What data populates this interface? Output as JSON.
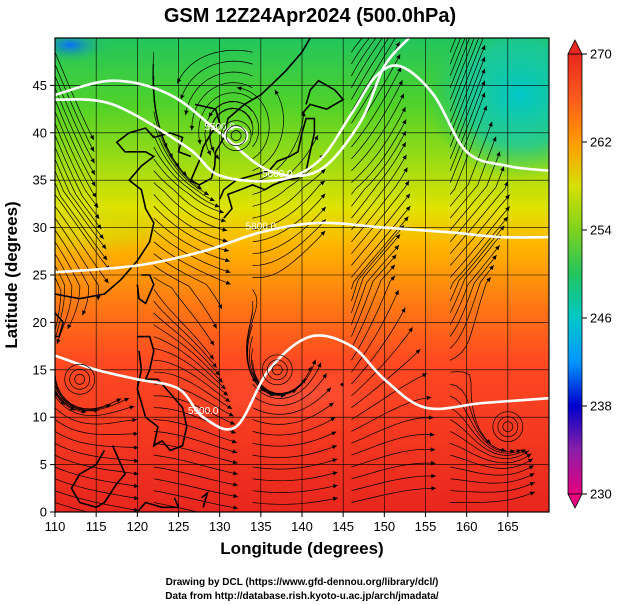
{
  "chart_data": {
    "type": "heatmap",
    "title": "GSM 12Z24Apr2024 (500.0hPa)",
    "xlabel": "Longitude (degrees)",
    "ylabel": "Latitude  (degrees)",
    "xlim": [
      110,
      170
    ],
    "ylim": [
      0,
      50
    ],
    "x_ticks": [
      "110",
      "115",
      "120",
      "125",
      "130",
      "135",
      "140",
      "145",
      "150",
      "155",
      "160",
      "165"
    ],
    "y_ticks": [
      "0",
      "5",
      "10",
      "15",
      "20",
      "25",
      "30",
      "35",
      "40",
      "45"
    ],
    "colorbar": {
      "vmin": 230,
      "vmax": 270,
      "ticks": [
        "270",
        "262",
        "254",
        "246",
        "238",
        "230"
      ],
      "colors": [
        "#e6007e",
        "#8a1fa8",
        "#0000cc",
        "#0096ff",
        "#00c8c8",
        "#22c55e",
        "#7fd21e",
        "#d6e000",
        "#ff9a00",
        "#ff5a1e",
        "#e8281e"
      ]
    },
    "contours": [
      {
        "label": "5500.0",
        "points": [
          [
            110,
            44
          ],
          [
            117,
            45.5
          ],
          [
            124,
            44
          ],
          [
            130,
            40
          ],
          [
            136,
            36
          ],
          [
            142,
            36
          ],
          [
            147,
            41
          ],
          [
            150,
            47
          ],
          [
            153,
            50
          ]
        ]
      },
      {
        "label": "5600.0",
        "points": [
          [
            110,
            43.5
          ],
          [
            117,
            43
          ],
          [
            126,
            38.5
          ],
          [
            130,
            35.5
          ],
          [
            137,
            35
          ],
          [
            142,
            37
          ],
          [
            146,
            42
          ],
          [
            149,
            46
          ],
          [
            152,
            47
          ],
          [
            156,
            44
          ],
          [
            160,
            38
          ],
          [
            165,
            36.5
          ],
          [
            170,
            36
          ]
        ]
      },
      {
        "label": "5800.0",
        "points": [
          [
            110,
            25.3
          ],
          [
            120,
            26
          ],
          [
            128,
            27.5
          ],
          [
            135,
            29.5
          ],
          [
            142,
            30.5
          ],
          [
            150,
            30
          ],
          [
            158,
            29.5
          ],
          [
            164,
            29
          ],
          [
            170,
            29
          ]
        ]
      },
      {
        "label": "5900.0",
        "points": [
          [
            110,
            16.5
          ],
          [
            115,
            15
          ],
          [
            120,
            14
          ],
          [
            125,
            13
          ],
          [
            128,
            10
          ],
          [
            132,
            9
          ],
          [
            136,
            15
          ],
          [
            141,
            18.5
          ],
          [
            146,
            17.5
          ],
          [
            150,
            14
          ],
          [
            155,
            11
          ],
          [
            162,
            11.5
          ],
          [
            170,
            12
          ]
        ]
      }
    ],
    "vortex_centers": [
      {
        "lon": 132,
        "lat": 39.7
      },
      {
        "lon": 137,
        "lat": 15
      },
      {
        "lon": 113,
        "lat": 14
      },
      {
        "lon": 165,
        "lat": 9
      }
    ]
  },
  "credits": {
    "line1": "Drawing by DCL (https://www.gfd-dennou.org/library/dcl/)",
    "line2": "Data from http://database.rish.kyoto-u.ac.jp/arch/jmadata/"
  }
}
